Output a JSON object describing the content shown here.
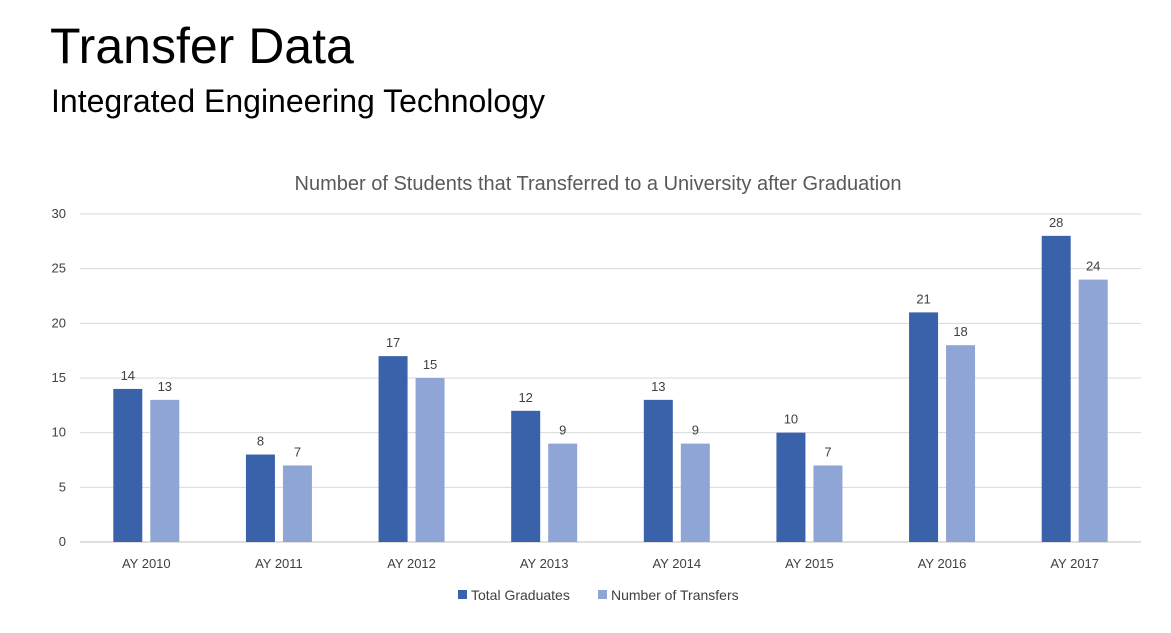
{
  "slide": {
    "title": "Transfer Data",
    "subtitle": "Integrated Engineering Technology"
  },
  "chart_data": {
    "type": "bar",
    "title": "Number of Students that Transferred to a University after Graduation",
    "xlabel": "",
    "ylabel": "",
    "categories": [
      "AY 2010",
      "AY 2011",
      "AY 2012",
      "AY 2013",
      "AY 2014",
      "AY 2015",
      "AY 2016",
      "AY 2017"
    ],
    "series": [
      {
        "name": "Total Graduates",
        "color": "#3A62AA",
        "values": [
          14,
          8,
          17,
          12,
          13,
          10,
          21,
          28
        ]
      },
      {
        "name": "Number of Transfers",
        "color": "#8FA5D5",
        "values": [
          13,
          7,
          15,
          9,
          9,
          7,
          18,
          24
        ]
      }
    ],
    "ylim": [
      0,
      30
    ],
    "yticks": [
      0,
      5,
      10,
      15,
      20,
      25,
      30
    ],
    "grid": true,
    "data_labels": true,
    "legend_position": "bottom"
  }
}
